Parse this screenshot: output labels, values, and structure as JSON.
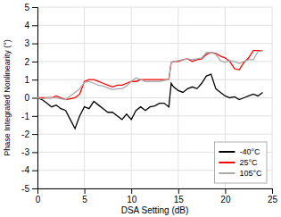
{
  "chart_data": {
    "type": "line",
    "xlabel": "DSA Setting (dB)",
    "ylabel": "Phase Integrated Nonlinearity (°)",
    "x": [
      0,
      0.5,
      1,
      1.5,
      2,
      2.5,
      3,
      3.5,
      4,
      4.5,
      5,
      5.5,
      6,
      6.5,
      7,
      7.5,
      8,
      8.5,
      9,
      9.5,
      10,
      10.5,
      11,
      11.5,
      12,
      12.5,
      13,
      13.5,
      14,
      14.25,
      14.5,
      15,
      15.5,
      16,
      16.5,
      17,
      17.5,
      18,
      18.5,
      19,
      19.5,
      20,
      20.5,
      21,
      21.5,
      22,
      22.5,
      23,
      23.5,
      24
    ],
    "series": [
      {
        "name": "-40°C",
        "color": "#000000",
        "values": [
          0,
          -0.1,
          -0.3,
          -0.5,
          -0.4,
          -0.6,
          -0.7,
          -1.2,
          -1.7,
          -1.0,
          -0.5,
          -0.6,
          -0.2,
          -0.4,
          -0.6,
          -0.8,
          -0.8,
          -1.0,
          -1.2,
          -0.9,
          -1.2,
          -0.7,
          -0.5,
          -0.7,
          -0.5,
          -0.45,
          -0.3,
          -0.3,
          -0.5,
          0.8,
          0.6,
          0.4,
          0.3,
          0.5,
          0.6,
          0.5,
          0.8,
          1.2,
          1.3,
          0.5,
          0.3,
          0.1,
          0.0,
          0.05,
          -0.1,
          0.0,
          0.1,
          0.2,
          0.1,
          0.3
        ]
      },
      {
        "name": "25°C",
        "color": "#ff0000",
        "values": [
          0,
          0.0,
          0.0,
          0.0,
          0.1,
          0.0,
          -0.1,
          -0.05,
          0.0,
          0.2,
          0.9,
          1.0,
          1.0,
          0.9,
          0.8,
          0.7,
          0.6,
          0.7,
          0.7,
          0.8,
          0.9,
          0.9,
          1.0,
          1.0,
          1.0,
          1.0,
          1.0,
          1.0,
          1.0,
          1.95,
          2.0,
          2.0,
          2.1,
          2.15,
          2.0,
          2.1,
          2.15,
          2.4,
          2.5,
          2.45,
          2.3,
          2.2,
          2.0,
          1.6,
          1.55,
          1.95,
          2.2,
          2.6,
          2.6,
          2.6
        ]
      },
      {
        "name": "105°C",
        "color": "#aaaaaa",
        "values": [
          0,
          -0.05,
          0.0,
          0.0,
          0.0,
          -0.05,
          -0.1,
          0.1,
          0.3,
          0.5,
          0.85,
          0.9,
          0.8,
          0.7,
          0.65,
          0.55,
          0.45,
          0.5,
          0.5,
          0.65,
          0.9,
          1.1,
          1.0,
          0.9,
          0.9,
          0.9,
          0.9,
          0.95,
          1.0,
          1.95,
          2.0,
          2.05,
          2.1,
          2.15,
          2.1,
          2.15,
          2.2,
          2.5,
          2.5,
          2.4,
          2.05,
          1.95,
          2.05,
          2.0,
          1.9,
          2.0,
          2.1,
          2.1,
          2.55,
          2.6
        ]
      }
    ],
    "xlim": [
      0,
      25
    ],
    "ylim": [
      -5,
      5
    ],
    "xticks": [
      0,
      5,
      10,
      15,
      20,
      25
    ],
    "yticks": [
      -5,
      -4,
      -3,
      -2,
      -1,
      0,
      1,
      2,
      3,
      4,
      5
    ],
    "grid": true,
    "legend": "lower right"
  }
}
